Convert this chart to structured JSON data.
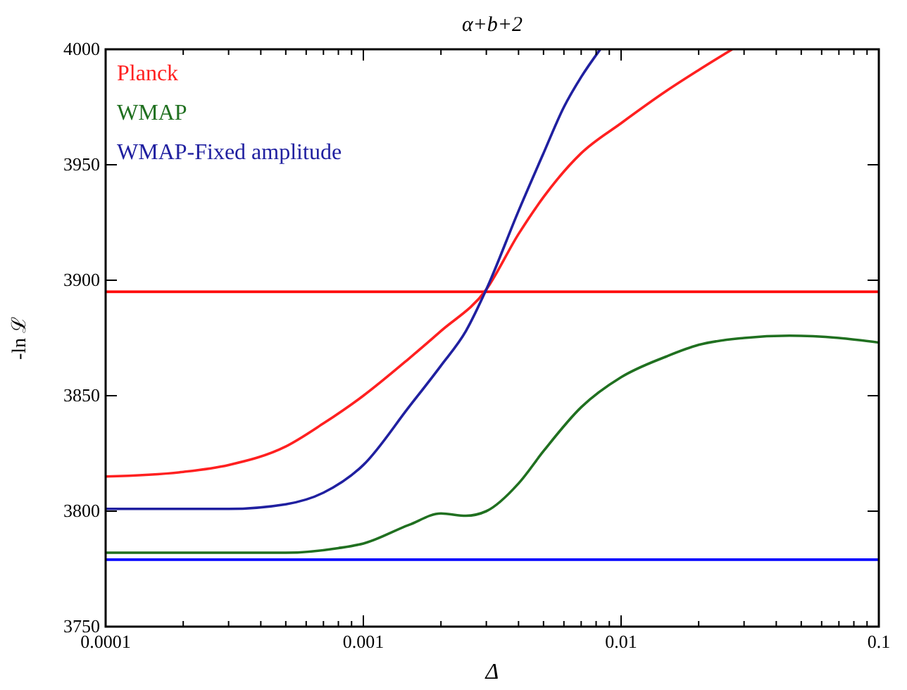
{
  "chart_data": {
    "type": "line",
    "title": "α+b+2",
    "xlabel": "Δ",
    "ylabel": "-ln ℒ",
    "log": "x",
    "xlim": [
      0.0001,
      0.1
    ],
    "ylim": [
      3750,
      4000
    ],
    "xticks": [
      0.0001,
      {
        "value": 0.0002,
        "label": null
      },
      {
        "value": 0.0003,
        "label": null
      },
      {
        "value": 0.0004,
        "label": null
      },
      {
        "value": 0.0005,
        "label": null
      },
      {
        "value": 0.0006,
        "label": null
      },
      {
        "value": 0.0007,
        "label": null
      },
      {
        "value": 0.0008,
        "label": null
      },
      {
        "value": 0.0009,
        "label": null
      },
      0.001,
      {
        "value": 0.002,
        "label": null
      },
      {
        "value": 0.003,
        "label": null
      },
      {
        "value": 0.004,
        "label": null
      },
      {
        "value": 0.005,
        "label": null
      },
      {
        "value": 0.006,
        "label": null
      },
      {
        "value": 0.007,
        "label": null
      },
      {
        "value": 0.008,
        "label": null
      },
      {
        "value": 0.009,
        "label": null
      },
      0.01,
      {
        "value": 0.02,
        "label": null
      },
      {
        "value": 0.03,
        "label": null
      },
      {
        "value": 0.04,
        "label": null
      },
      {
        "value": 0.05,
        "label": null
      },
      {
        "value": 0.06,
        "label": null
      },
      {
        "value": 0.07,
        "label": null
      },
      {
        "value": 0.08,
        "label": null
      },
      {
        "value": 0.09,
        "label": null
      },
      0.1
    ],
    "yticks": [
      3750,
      3800,
      3850,
      3900,
      3950,
      4000
    ],
    "grid": false,
    "legend": "top left",
    "marker": "none",
    "line_style": "solid",
    "series": [
      {
        "name": "Planck",
        "color": "#ff2020",
        "x": [
          0.0001,
          0.0002,
          0.0003,
          0.0005,
          0.0007,
          0.001,
          0.0015,
          0.002,
          0.003,
          0.004,
          0.005,
          0.007,
          0.01,
          0.015,
          0.02,
          0.027
        ],
        "values": [
          3815,
          3817,
          3820,
          3828,
          3838,
          3850,
          3866,
          3878,
          3896,
          3920,
          3936,
          3955,
          3968,
          3982,
          3991,
          4000
        ]
      },
      {
        "name": "WMAP",
        "color": "#207020",
        "x": [
          0.0001,
          0.0005,
          0.0008,
          0.001,
          0.0015,
          0.002,
          0.0025,
          0.003,
          0.004,
          0.005,
          0.007,
          0.01,
          0.015,
          0.02,
          0.03,
          0.045,
          0.07,
          0.1
        ],
        "values": [
          3782,
          3782,
          3784,
          3786,
          3794,
          3799,
          3798,
          3800,
          3812,
          3826,
          3845,
          3858,
          3867,
          3872,
          3875,
          3876,
          3875,
          3873
        ]
      },
      {
        "name": "WMAP-Fixed amplitude",
        "color": "#2020a0",
        "x": [
          0.0001,
          0.0003,
          0.0005,
          0.0007,
          0.001,
          0.0015,
          0.002,
          0.0025,
          0.003,
          0.004,
          0.005,
          0.006,
          0.007,
          0.0083
        ],
        "values": [
          3801,
          3801,
          3803,
          3808,
          3820,
          3845,
          3863,
          3878,
          3896,
          3930,
          3955,
          3975,
          3988,
          4000
        ]
      }
    ],
    "ref_lines": [
      {
        "axis": "y",
        "value": 3895,
        "color": "#ff0000"
      },
      {
        "axis": "y",
        "value": 3779,
        "color": "#0000ff"
      }
    ]
  }
}
